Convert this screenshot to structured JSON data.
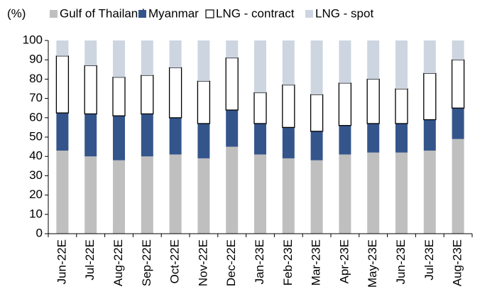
{
  "chart_data": {
    "type": "stacked_bar",
    "y_label": "(%)",
    "categories": [
      "Jun-22E",
      "Jul-22E",
      "Aug-22E",
      "Sep-22E",
      "Oct-22E",
      "Nov-22E",
      "Dec-22E",
      "Jan-23E",
      "Feb-23E",
      "Mar-23E",
      "Apr-23E",
      "May-23E",
      "Jun-23E",
      "Jul-23E",
      "Aug-23E"
    ],
    "series": [
      {
        "name": "Gulf of Thailand",
        "color": "#bfbfbf",
        "values": [
          43,
          40,
          38,
          40,
          41,
          39,
          45,
          41,
          39,
          38,
          41,
          42,
          42,
          43,
          49
        ]
      },
      {
        "name": "Myanmar",
        "color": "#34558b",
        "values": [
          19.5,
          22,
          23,
          22,
          19,
          18,
          19,
          16,
          16,
          15,
          15,
          15,
          15,
          16,
          16
        ]
      },
      {
        "name": "LNG - contract",
        "color": "#ffffff",
        "border": "#000000",
        "values": [
          29.5,
          25,
          20,
          20,
          26,
          22,
          27,
          16,
          22,
          19,
          22,
          23,
          18,
          24,
          25
        ]
      },
      {
        "name": "LNG - spot",
        "color": "#cdd5e0",
        "values": [
          8,
          13,
          19,
          18,
          14,
          21,
          9,
          27,
          23,
          28,
          22,
          20,
          25,
          17,
          10
        ]
      }
    ],
    "ylim": [
      0,
      100
    ],
    "yticks": [
      0,
      10,
      20,
      30,
      40,
      50,
      60,
      70,
      80,
      90,
      100
    ],
    "legend": "top"
  }
}
